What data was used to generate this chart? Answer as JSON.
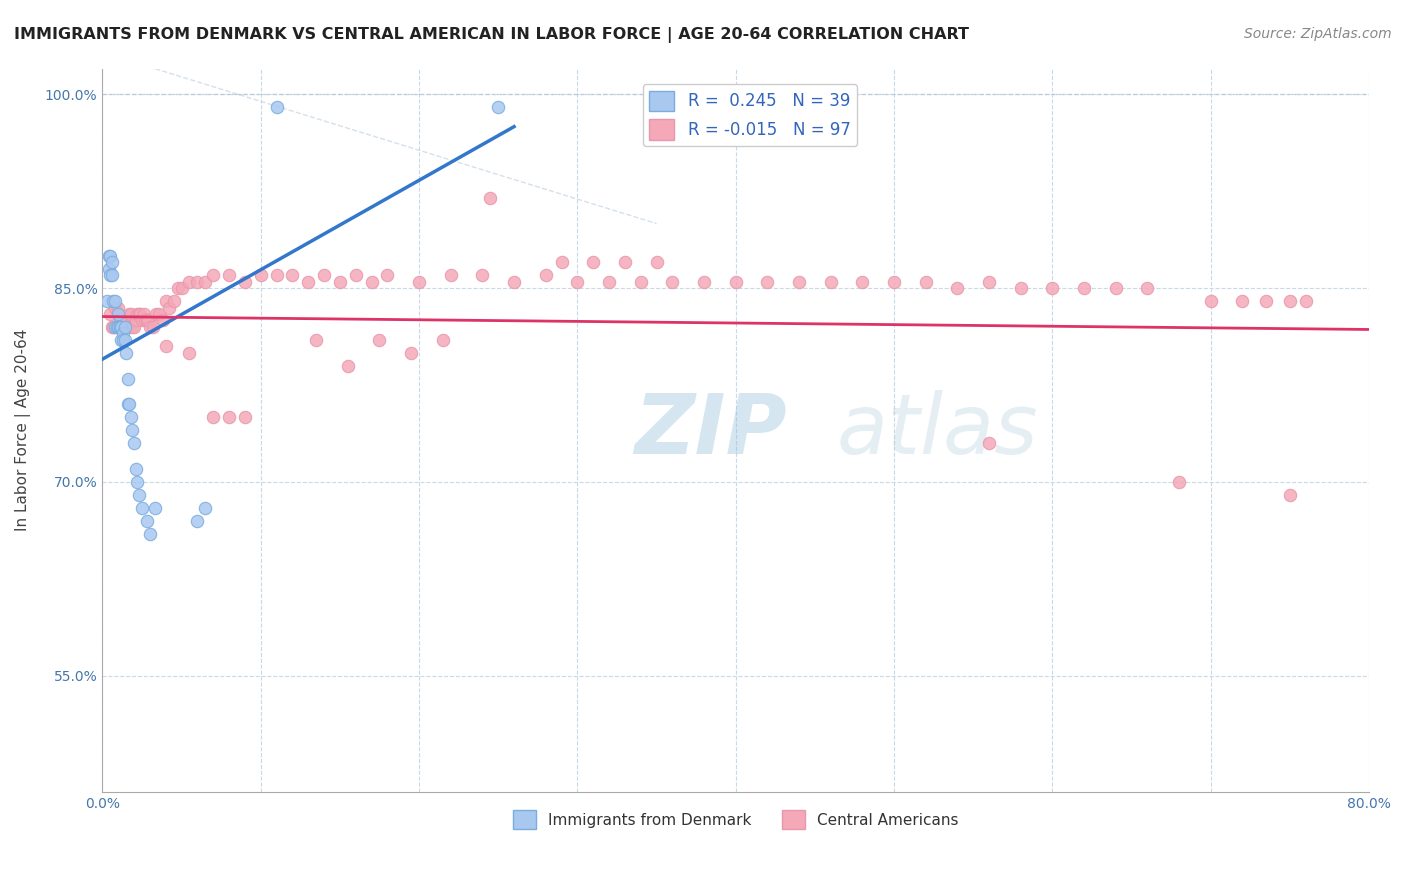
{
  "title": "IMMIGRANTS FROM DENMARK VS CENTRAL AMERICAN IN LABOR FORCE | AGE 20-64 CORRELATION CHART",
  "source": "Source: ZipAtlas.com",
  "ylabel": "In Labor Force | Age 20-64",
  "xlim": [
    0.0,
    0.8
  ],
  "ylim": [
    0.46,
    1.02
  ],
  "xticks": [
    0.0,
    0.1,
    0.2,
    0.3,
    0.4,
    0.5,
    0.6,
    0.7,
    0.8
  ],
  "yticks": [
    0.55,
    0.7,
    0.85,
    1.0
  ],
  "ytick_labels": [
    "55.0%",
    "70.0%",
    "85.0%",
    "100.0%"
  ],
  "R_blue": 0.245,
  "N_blue": 39,
  "R_pink": -0.015,
  "N_pink": 97,
  "blue_color": "#a8c8f0",
  "pink_color": "#f4a8b8",
  "blue_line_color": "#3377cc",
  "pink_line_color": "#dd3366",
  "grid_color": "#c8dae8",
  "blue_scatter_x": [
    0.003,
    0.004,
    0.004,
    0.005,
    0.005,
    0.006,
    0.006,
    0.007,
    0.008,
    0.008,
    0.009,
    0.01,
    0.01,
    0.011,
    0.011,
    0.012,
    0.012,
    0.013,
    0.013,
    0.014,
    0.014,
    0.015,
    0.016,
    0.016,
    0.017,
    0.018,
    0.019,
    0.02,
    0.021,
    0.022,
    0.023,
    0.025,
    0.028,
    0.03,
    0.033,
    0.06,
    0.065,
    0.11,
    0.25
  ],
  "blue_scatter_y": [
    0.84,
    0.865,
    0.875,
    0.86,
    0.875,
    0.86,
    0.87,
    0.84,
    0.82,
    0.84,
    0.82,
    0.83,
    0.82,
    0.82,
    0.82,
    0.81,
    0.82,
    0.815,
    0.81,
    0.82,
    0.81,
    0.8,
    0.78,
    0.76,
    0.76,
    0.75,
    0.74,
    0.73,
    0.71,
    0.7,
    0.69,
    0.68,
    0.67,
    0.66,
    0.68,
    0.67,
    0.68,
    0.99,
    0.99
  ],
  "pink_scatter_x": [
    0.005,
    0.006,
    0.007,
    0.008,
    0.009,
    0.01,
    0.011,
    0.012,
    0.013,
    0.014,
    0.015,
    0.016,
    0.017,
    0.018,
    0.019,
    0.02,
    0.021,
    0.022,
    0.023,
    0.024,
    0.025,
    0.026,
    0.027,
    0.028,
    0.029,
    0.03,
    0.032,
    0.034,
    0.036,
    0.038,
    0.04,
    0.042,
    0.045,
    0.048,
    0.05,
    0.055,
    0.06,
    0.065,
    0.07,
    0.08,
    0.09,
    0.1,
    0.11,
    0.12,
    0.13,
    0.14,
    0.15,
    0.16,
    0.17,
    0.18,
    0.2,
    0.22,
    0.24,
    0.26,
    0.28,
    0.3,
    0.32,
    0.34,
    0.36,
    0.38,
    0.4,
    0.42,
    0.44,
    0.46,
    0.48,
    0.5,
    0.52,
    0.54,
    0.56,
    0.58,
    0.6,
    0.62,
    0.64,
    0.66,
    0.68,
    0.7,
    0.72,
    0.735,
    0.75,
    0.76,
    0.245,
    0.29,
    0.31,
    0.33,
    0.35,
    0.135,
    0.155,
    0.175,
    0.195,
    0.215,
    0.07,
    0.08,
    0.09,
    0.56,
    0.75,
    0.04,
    0.055
  ],
  "pink_scatter_y": [
    0.83,
    0.82,
    0.82,
    0.835,
    0.82,
    0.835,
    0.825,
    0.82,
    0.82,
    0.82,
    0.82,
    0.82,
    0.83,
    0.83,
    0.82,
    0.82,
    0.825,
    0.83,
    0.83,
    0.83,
    0.825,
    0.83,
    0.825,
    0.825,
    0.825,
    0.82,
    0.82,
    0.83,
    0.83,
    0.825,
    0.84,
    0.835,
    0.84,
    0.85,
    0.85,
    0.855,
    0.855,
    0.855,
    0.86,
    0.86,
    0.855,
    0.86,
    0.86,
    0.86,
    0.855,
    0.86,
    0.855,
    0.86,
    0.855,
    0.86,
    0.855,
    0.86,
    0.86,
    0.855,
    0.86,
    0.855,
    0.855,
    0.855,
    0.855,
    0.855,
    0.855,
    0.855,
    0.855,
    0.855,
    0.855,
    0.855,
    0.855,
    0.85,
    0.855,
    0.85,
    0.85,
    0.85,
    0.85,
    0.85,
    0.7,
    0.84,
    0.84,
    0.84,
    0.84,
    0.84,
    0.92,
    0.87,
    0.87,
    0.87,
    0.87,
    0.81,
    0.79,
    0.81,
    0.8,
    0.81,
    0.75,
    0.75,
    0.75,
    0.73,
    0.69,
    0.805,
    0.8
  ],
  "blue_trend_x": [
    0.0,
    0.26
  ],
  "blue_trend_y": [
    0.795,
    0.975
  ],
  "pink_trend_x": [
    0.0,
    0.8
  ],
  "pink_trend_y": [
    0.828,
    0.818
  ]
}
